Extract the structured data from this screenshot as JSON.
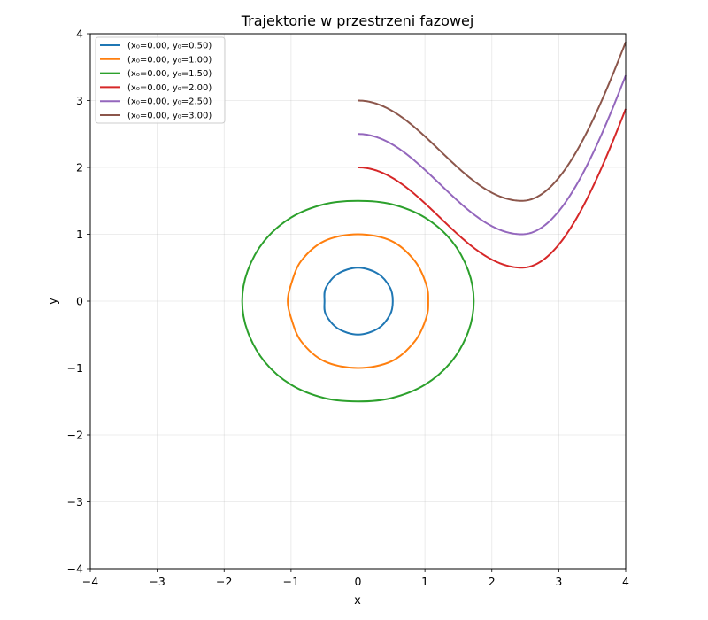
{
  "chart_data": {
    "type": "line",
    "title": "Trajektorie w przestrzeni fazowej",
    "xlabel": "x",
    "ylabel": "y",
    "xlim": [
      -4,
      4
    ],
    "ylim": [
      -4,
      4
    ],
    "xticks": [
      "−4",
      "−3",
      "−2",
      "−1",
      "0",
      "1",
      "2",
      "3",
      "4"
    ],
    "yticks": [
      "−4",
      "−3",
      "−2",
      "−1",
      "0",
      "1",
      "2",
      "3",
      "4"
    ],
    "grid": true,
    "legend_position": "top-left",
    "series": [
      {
        "name": "(x₀=0.00, y₀=0.50)",
        "color": "#1f77b4",
        "y0": 0.5,
        "kind": "closed",
        "points": [
          [
            0,
            0.5
          ],
          [
            0.3,
            0.41
          ],
          [
            0.48,
            0.2
          ],
          [
            0.52,
            0
          ],
          [
            0.48,
            -0.2
          ],
          [
            0.3,
            -0.41
          ],
          [
            0,
            -0.5
          ],
          [
            -0.3,
            -0.41
          ],
          [
            -0.48,
            -0.2
          ],
          [
            -0.5,
            0
          ],
          [
            -0.48,
            0.2
          ],
          [
            -0.3,
            0.41
          ],
          [
            0,
            0.5
          ]
        ]
      },
      {
        "name": "(x₀=0.00, y₀=1.00)",
        "color": "#ff7f0e",
        "y0": 1.0,
        "kind": "closed",
        "points": [
          [
            0,
            1
          ],
          [
            0.5,
            0.9
          ],
          [
            0.85,
            0.6
          ],
          [
            1.02,
            0.25
          ],
          [
            1.05,
            0
          ],
          [
            1.02,
            -0.25
          ],
          [
            0.85,
            -0.6
          ],
          [
            0.5,
            -0.9
          ],
          [
            0,
            -1
          ],
          [
            -0.5,
            -0.9
          ],
          [
            -0.85,
            -0.6
          ],
          [
            -1.0,
            -0.25
          ],
          [
            -1.05,
            0
          ],
          [
            -1.0,
            0.25
          ],
          [
            -0.85,
            0.6
          ],
          [
            -0.5,
            0.9
          ],
          [
            0,
            1
          ]
        ]
      },
      {
        "name": "(x₀=0.00, y₀=1.50)",
        "color": "#2ca02c",
        "y0": 1.5,
        "kind": "closed",
        "points": [
          [
            0,
            1.5
          ],
          [
            0.5,
            1.45
          ],
          [
            1.0,
            1.25
          ],
          [
            1.4,
            0.9
          ],
          [
            1.65,
            0.45
          ],
          [
            1.73,
            0
          ],
          [
            1.65,
            -0.45
          ],
          [
            1.4,
            -0.9
          ],
          [
            1.0,
            -1.25
          ],
          [
            0.5,
            -1.45
          ],
          [
            0,
            -1.5
          ],
          [
            -0.5,
            -1.45
          ],
          [
            -1.0,
            -1.25
          ],
          [
            -1.4,
            -0.9
          ],
          [
            -1.65,
            -0.45
          ],
          [
            -1.73,
            0
          ],
          [
            -1.65,
            0.45
          ],
          [
            -1.4,
            0.9
          ],
          [
            -1.0,
            1.25
          ],
          [
            -0.5,
            1.45
          ],
          [
            0,
            1.5
          ]
        ]
      },
      {
        "name": "(x₀=0.00, y₀=2.00)",
        "color": "#d62728",
        "y0": 2.0,
        "kind": "open"
      },
      {
        "name": "(x₀=0.00, y₀=2.50)",
        "color": "#9467bd",
        "y0": 2.5,
        "kind": "open"
      },
      {
        "name": "(x₀=0.00, y₀=3.00)",
        "color": "#8c564b",
        "y0": 3.0,
        "kind": "open"
      }
    ]
  }
}
